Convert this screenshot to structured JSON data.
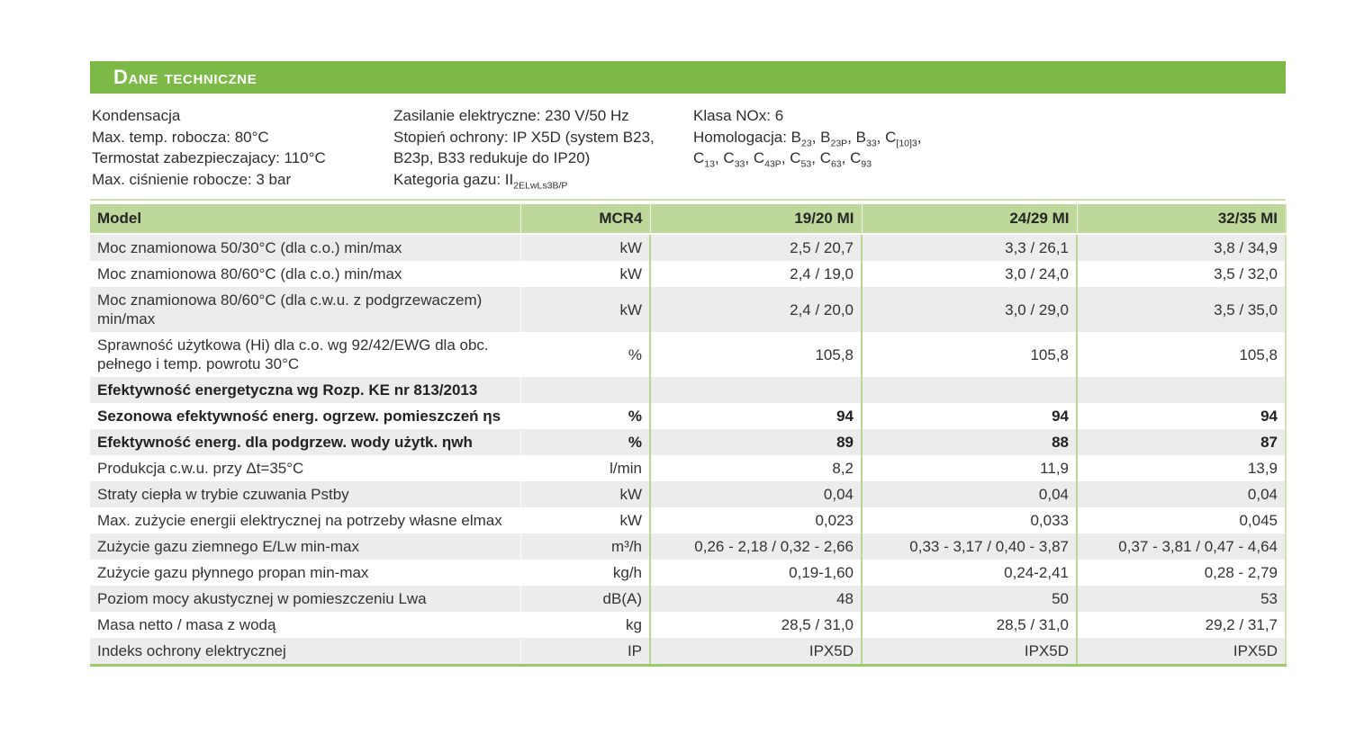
{
  "page_title": "Dane techniczne",
  "colors": {
    "accent_green": "#7cb947",
    "table_header_green": "#bed89b",
    "row_stripe_gray": "#ececec",
    "column_divider_green": "#b9d78f",
    "bottom_border_green": "#9cc968"
  },
  "intro": {
    "col1": [
      "Kondensacja",
      "Max. temp. robocza: 80°C",
      "Termostat zabezpieczajacy: 110°C",
      "Max. ciśnienie robocze: 3 bar"
    ],
    "col2": [
      "Zasilanie elektryczne: 230 V/50 Hz",
      "Stopień ochrony: IP X5D (system B23,",
      "B23p, B33 redukuje do IP20)"
    ],
    "gas_category": {
      "text": "Kategoria gazu: II",
      "sub": "2ELwLs3B/P"
    },
    "col3": {
      "nox": "Klasa NOx: 6",
      "homologacja_label": "Homologacja: ",
      "line1": [
        {
          "t": "B",
          "s": "23",
          "sep": ", "
        },
        {
          "t": "B",
          "s": "23P",
          "sep": ", "
        },
        {
          "t": "B",
          "s": "33",
          "sep": ", "
        },
        {
          "t": "C",
          "s": "[10]3",
          "sep": ","
        }
      ],
      "line2": [
        {
          "t": "C",
          "s": "13",
          "sep": ", "
        },
        {
          "t": "C",
          "s": "33",
          "sep": ", "
        },
        {
          "t": "C",
          "s": "43P",
          "sep": ", "
        },
        {
          "t": "C",
          "s": "53",
          "sep": ", "
        },
        {
          "t": "C",
          "s": "63",
          "sep": ", "
        },
        {
          "t": "C",
          "s": "93",
          "sep": ""
        }
      ]
    }
  },
  "table": {
    "header": {
      "model": "Model",
      "unit": "MCR4",
      "cols": [
        "19/20 MI",
        "24/29 MI",
        "32/35 MI"
      ]
    },
    "rows": [
      {
        "label": "Moc znamionowa 50/30°C (dla c.o.) min/max",
        "unit": "kW",
        "values": [
          "2,5 / 20,7",
          "3,3 / 26,1",
          "3,8 / 34,9"
        ],
        "bold": false
      },
      {
        "label": "Moc znamionowa 80/60°C (dla c.o.) min/max",
        "unit": "kW",
        "values": [
          "2,4 / 19,0",
          "3,0 / 24,0",
          "3,5 / 32,0"
        ],
        "bold": false
      },
      {
        "label": "Moc znamionowa 80/60°C (dla c.w.u. z podgrzewaczem)\nmin/max",
        "unit": "kW",
        "values": [
          "2,4 / 20,0",
          "3,0 / 29,0",
          "3,5 / 35,0"
        ],
        "bold": false
      },
      {
        "label": "Sprawność użytkowa (Hi) dla c.o. wg 92/42/EWG dla obc.\npełnego i temp. powrotu 30°C",
        "unit": "%",
        "values": [
          "105,8",
          "105,8",
          "105,8"
        ],
        "bold": false
      },
      {
        "label": "Efektywność energetyczna wg Rozp. KE nr 813/2013",
        "unit": "",
        "values": [
          "",
          "",
          ""
        ],
        "bold": true
      },
      {
        "label": "Sezonowa efektywność energ. ogrzew. pomieszczeń ηs",
        "unit": "%",
        "values": [
          "94",
          "94",
          "94"
        ],
        "bold": true
      },
      {
        "label": "Efektywność energ. dla podgrzew. wody użytk. ηwh",
        "unit": "%",
        "values": [
          "89",
          "88",
          "87"
        ],
        "bold": true
      },
      {
        "label": "Produkcja c.w.u. przy Δt=35°C",
        "unit": "l/min",
        "values": [
          "8,2",
          "11,9",
          "13,9"
        ],
        "bold": false
      },
      {
        "label": "Straty ciepła w trybie czuwania Pstby",
        "unit": "kW",
        "values": [
          "0,04",
          "0,04",
          "0,04"
        ],
        "bold": false
      },
      {
        "label": "Max. zużycie energii elektrycznej na potrzeby własne elmax",
        "unit": "kW",
        "values": [
          "0,023",
          "0,033",
          "0,045"
        ],
        "bold": false
      },
      {
        "label": "Zużycie gazu ziemnego E/Lw min-max",
        "unit": "m³/h",
        "values": [
          "0,26 - 2,18 / 0,32 - 2,66",
          "0,33 - 3,17 / 0,40 - 3,87",
          "0,37 - 3,81 / 0,47 - 4,64"
        ],
        "bold": false
      },
      {
        "label": "Zużycie gazu płynnego propan min-max",
        "unit": "kg/h",
        "values": [
          "0,19-1,60",
          "0,24-2,41",
          "0,28 - 2,79"
        ],
        "bold": false
      },
      {
        "label": "Poziom mocy akustycznej w pomieszczeniu Lwa",
        "unit": "dB(A)",
        "values": [
          "48",
          "50",
          "53"
        ],
        "bold": false
      },
      {
        "label": "Masa netto / masa z wodą",
        "unit": "kg",
        "values": [
          "28,5 / 31,0",
          "28,5 / 31,0",
          "29,2 / 31,7"
        ],
        "bold": false
      },
      {
        "label": "Indeks ochrony elektrycznej",
        "unit": "IP",
        "values": [
          "IPX5D",
          "IPX5D",
          "IPX5D"
        ],
        "bold": false
      }
    ]
  }
}
